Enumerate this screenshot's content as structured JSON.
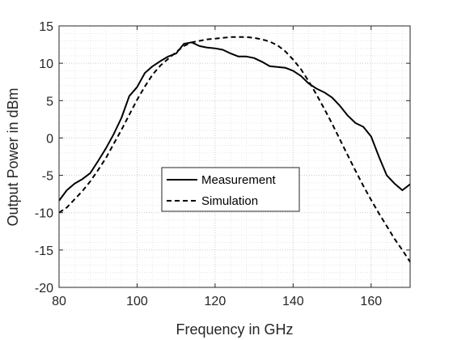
{
  "chart_data": {
    "type": "line",
    "title": "",
    "xlabel": "Frequency in GHz",
    "ylabel": "Output Power in dBm",
    "xlim": [
      80,
      170
    ],
    "ylim": [
      -20,
      15
    ],
    "xticks": [
      80,
      100,
      120,
      140,
      160
    ],
    "yticks": [
      15,
      10,
      5,
      0,
      -5,
      -10,
      -15,
      -20
    ],
    "grid": "major and minor, dotted",
    "legend_position": "center-left",
    "series": [
      {
        "name": "Measurement",
        "style": "solid",
        "color": "#000000",
        "x": [
          80,
          82,
          84,
          86,
          88,
          90,
          92,
          94,
          96,
          98,
          100,
          102,
          104,
          106,
          108,
          110,
          112,
          114,
          116,
          118,
          120,
          122,
          124,
          126,
          128,
          130,
          132,
          134,
          136,
          138,
          140,
          142,
          144,
          146,
          148,
          150,
          152,
          154,
          156,
          158,
          160,
          162,
          164,
          166,
          168,
          170
        ],
        "values": [
          -8.4,
          -7.0,
          -6.1,
          -5.5,
          -4.7,
          -3.1,
          -1.4,
          0.5,
          2.7,
          5.6,
          6.8,
          8.7,
          9.6,
          10.3,
          10.9,
          11.3,
          12.6,
          12.8,
          12.3,
          12.1,
          12.0,
          11.8,
          11.3,
          10.9,
          10.9,
          10.7,
          10.2,
          9.6,
          9.5,
          9.4,
          9.0,
          8.3,
          7.3,
          6.6,
          6.1,
          5.4,
          4.3,
          3.0,
          2.0,
          1.5,
          0.2,
          -2.5,
          -5.0,
          -6.1,
          -7.0,
          -6.2
        ]
      },
      {
        "name": "Simulation",
        "style": "dashed",
        "color": "#000000",
        "x": [
          80,
          82,
          84,
          86,
          88,
          90,
          92,
          94,
          96,
          98,
          100,
          102,
          104,
          106,
          108,
          110,
          112,
          114,
          116,
          118,
          120,
          122,
          124,
          126,
          128,
          130,
          132,
          134,
          136,
          138,
          140,
          142,
          144,
          146,
          148,
          150,
          152,
          154,
          156,
          158,
          160,
          162,
          164,
          166,
          168,
          170
        ],
        "values": [
          -10.0,
          -9.3,
          -8.2,
          -7.1,
          -5.8,
          -4.3,
          -2.7,
          -0.8,
          1.1,
          3.1,
          5.1,
          6.9,
          8.5,
          9.7,
          10.6,
          11.5,
          12.3,
          12.8,
          13.0,
          13.2,
          13.3,
          13.4,
          13.5,
          13.5,
          13.5,
          13.4,
          13.2,
          12.9,
          12.4,
          11.6,
          10.5,
          9.2,
          7.6,
          5.8,
          3.9,
          1.9,
          -0.2,
          -2.3,
          -4.4,
          -6.4,
          -8.3,
          -10.1,
          -11.8,
          -13.5,
          -15.0,
          -16.6
        ]
      }
    ]
  }
}
